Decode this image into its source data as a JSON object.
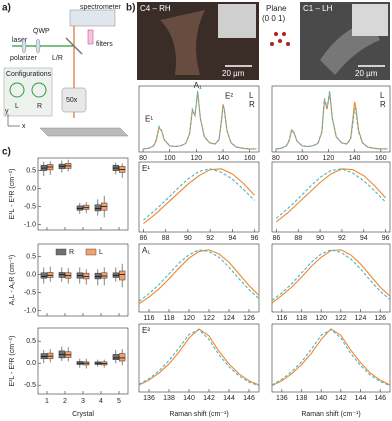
{
  "figure": {
    "a": {
      "label": "a)",
      "spectrometer": "spectrometer",
      "laser": "laser",
      "qwp": "QWP",
      "polarizer": "polarizer",
      "lr": "L/R",
      "filters": "filters",
      "objective": "50x",
      "configurations": "Configurations",
      "config_l": "L",
      "config_r": "R",
      "axis_x": "x",
      "axis_y": "y"
    },
    "b": {
      "label": "b)",
      "left_image": "C4 – RH",
      "left_scale": "20 µm",
      "plane": "Plane",
      "plane_index": "(0 0 1)",
      "right_image": "C1 – LH",
      "right_scale": "20 µm"
    },
    "c": {
      "label": "c)"
    }
  },
  "chart_data": [
    {
      "type": "line",
      "xlim": [
        77,
        167
      ],
      "xticks": [
        80,
        100,
        120,
        140,
        160
      ],
      "ylim": [
        0,
        1.08
      ],
      "legend": true,
      "annotations": [
        "E¹",
        "A₁",
        "E²"
      ],
      "x": [
        80,
        84,
        88,
        90,
        92,
        94,
        96,
        100,
        104,
        108,
        112,
        115,
        117,
        119,
        121,
        123,
        126,
        130,
        134,
        137,
        139,
        140,
        141,
        143,
        146,
        150,
        155,
        160,
        165
      ],
      "series": [
        {
          "name": "L",
          "color": "#f0862a",
          "dash": false,
          "values": [
            0.05,
            0.06,
            0.1,
            0.19,
            0.4,
            0.34,
            0.2,
            0.1,
            0.09,
            0.1,
            0.14,
            0.3,
            0.68,
            0.6,
            0.98,
            0.55,
            0.25,
            0.15,
            0.13,
            0.2,
            0.55,
            0.78,
            0.7,
            0.35,
            0.15,
            0.08,
            0.06,
            0.05,
            0.05
          ]
        },
        {
          "name": "R",
          "color": "#45b6c6",
          "dash": true,
          "values": [
            0.05,
            0.06,
            0.1,
            0.21,
            0.42,
            0.35,
            0.2,
            0.1,
            0.09,
            0.1,
            0.14,
            0.31,
            0.7,
            0.6,
            1.0,
            0.56,
            0.25,
            0.15,
            0.13,
            0.2,
            0.52,
            0.74,
            0.68,
            0.34,
            0.15,
            0.08,
            0.06,
            0.05,
            0.05
          ]
        }
      ]
    },
    {
      "type": "line",
      "xlim": [
        77,
        167
      ],
      "xticks": [
        80,
        100,
        120,
        140,
        160
      ],
      "ylim": [
        0,
        1.08
      ],
      "legend": true,
      "x": [
        80,
        84,
        88,
        90,
        92,
        94,
        96,
        100,
        104,
        108,
        112,
        115,
        117,
        119,
        121,
        123,
        126,
        130,
        134,
        137,
        139,
        140,
        141,
        143,
        146,
        150,
        155,
        160,
        165
      ],
      "series": [
        {
          "name": "L",
          "color": "#f0862a",
          "dash": false,
          "values": [
            0.05,
            0.06,
            0.1,
            0.18,
            0.36,
            0.3,
            0.18,
            0.1,
            0.09,
            0.1,
            0.14,
            0.32,
            0.85,
            0.7,
            0.97,
            0.55,
            0.25,
            0.15,
            0.13,
            0.22,
            0.6,
            0.82,
            0.72,
            0.36,
            0.15,
            0.08,
            0.06,
            0.05,
            0.05
          ]
        },
        {
          "name": "R",
          "color": "#45b6c6",
          "dash": true,
          "values": [
            0.05,
            0.06,
            0.1,
            0.19,
            0.37,
            0.31,
            0.18,
            0.1,
            0.09,
            0.1,
            0.14,
            0.33,
            0.88,
            0.72,
            1.0,
            0.56,
            0.25,
            0.15,
            0.13,
            0.21,
            0.52,
            0.72,
            0.66,
            0.33,
            0.15,
            0.08,
            0.06,
            0.05,
            0.05
          ]
        }
      ]
    },
    {
      "type": "line",
      "label": "E¹",
      "xlim": [
        85.6,
        96.4
      ],
      "xticks": [
        86,
        88,
        90,
        92,
        94,
        96
      ],
      "ylim": [
        0.2,
        1.02
      ],
      "x": [
        86,
        87,
        88,
        89,
        90,
        91,
        92,
        93,
        94,
        95,
        96
      ],
      "series": [
        {
          "color": "#f0862a",
          "dash": false,
          "values": [
            0.3,
            0.4,
            0.52,
            0.64,
            0.76,
            0.86,
            0.93,
            0.94,
            0.88,
            0.77,
            0.63
          ]
        },
        {
          "color": "#45b6c6",
          "dash": true,
          "values": [
            0.34,
            0.45,
            0.57,
            0.7,
            0.82,
            0.91,
            0.94,
            0.9,
            0.82,
            0.7,
            0.57
          ]
        }
      ]
    },
    {
      "type": "line",
      "xlim": [
        85.6,
        96.4
      ],
      "xticks": [
        86,
        88,
        90,
        92,
        94,
        96
      ],
      "ylim": [
        0.2,
        1.02
      ],
      "x": [
        86,
        87,
        88,
        89,
        90,
        91,
        92,
        93,
        94,
        95,
        96
      ],
      "series": [
        {
          "color": "#f0862a",
          "dash": false,
          "values": [
            0.32,
            0.42,
            0.54,
            0.66,
            0.78,
            0.88,
            0.94,
            0.93,
            0.86,
            0.74,
            0.6
          ]
        },
        {
          "color": "#45b6c6",
          "dash": true,
          "values": [
            0.36,
            0.47,
            0.59,
            0.72,
            0.84,
            0.92,
            0.94,
            0.89,
            0.8,
            0.68,
            0.55
          ]
        }
      ]
    },
    {
      "type": "line",
      "label": "A₁",
      "xlim": [
        115,
        127
      ],
      "xticks": [
        116,
        118,
        120,
        122,
        124,
        126
      ],
      "ylim": [
        0.2,
        1.02
      ],
      "x": [
        115,
        116,
        117,
        118,
        119,
        120,
        121,
        122,
        123,
        124,
        125,
        126,
        127
      ],
      "series": [
        {
          "color": "#f0862a",
          "dash": false,
          "values": [
            0.3,
            0.38,
            0.48,
            0.6,
            0.73,
            0.85,
            0.93,
            0.95,
            0.9,
            0.8,
            0.66,
            0.52,
            0.4
          ]
        },
        {
          "color": "#45b6c6",
          "dash": true,
          "values": [
            0.33,
            0.42,
            0.53,
            0.66,
            0.79,
            0.89,
            0.95,
            0.93,
            0.86,
            0.74,
            0.6,
            0.47,
            0.36
          ]
        }
      ]
    },
    {
      "type": "line",
      "xlim": [
        115,
        127
      ],
      "xticks": [
        116,
        118,
        120,
        122,
        124,
        126
      ],
      "ylim": [
        0.2,
        1.02
      ],
      "x": [
        115,
        116,
        117,
        118,
        119,
        120,
        121,
        122,
        123,
        124,
        125,
        126,
        127
      ],
      "series": [
        {
          "color": "#f0862a",
          "dash": false,
          "values": [
            0.31,
            0.4,
            0.5,
            0.62,
            0.75,
            0.86,
            0.94,
            0.95,
            0.89,
            0.78,
            0.64,
            0.5,
            0.39
          ]
        },
        {
          "color": "#45b6c6",
          "dash": true,
          "values": [
            0.34,
            0.43,
            0.54,
            0.67,
            0.8,
            0.9,
            0.95,
            0.92,
            0.84,
            0.72,
            0.58,
            0.45,
            0.35
          ]
        }
      ]
    },
    {
      "type": "line",
      "label": "E²",
      "xlim": [
        135,
        147
      ],
      "xticks": [
        136,
        138,
        140,
        142,
        144,
        146
      ],
      "ylim": [
        0.05,
        1.02
      ],
      "x_label": "Raman shift (cm⁻¹)",
      "x": [
        135,
        136,
        137,
        138,
        139,
        140,
        141,
        142,
        143,
        144,
        145,
        146,
        147
      ],
      "series": [
        {
          "color": "#f0862a",
          "dash": false,
          "values": [
            0.15,
            0.22,
            0.32,
            0.45,
            0.62,
            0.82,
            0.95,
            0.85,
            0.63,
            0.45,
            0.31,
            0.21,
            0.15
          ]
        },
        {
          "color": "#45b6c6",
          "dash": true,
          "values": [
            0.16,
            0.24,
            0.35,
            0.5,
            0.68,
            0.87,
            0.94,
            0.8,
            0.58,
            0.41,
            0.28,
            0.19,
            0.14
          ]
        }
      ]
    },
    {
      "type": "line",
      "xlim": [
        135,
        147
      ],
      "xticks": [
        136,
        138,
        140,
        142,
        144,
        146
      ],
      "ylim": [
        0.05,
        1.02
      ],
      "x_label": "Raman shift (cm⁻¹)",
      "x": [
        135,
        136,
        137,
        138,
        139,
        140,
        141,
        142,
        143,
        144,
        145,
        146,
        147
      ],
      "series": [
        {
          "color": "#f0862a",
          "dash": false,
          "values": [
            0.14,
            0.21,
            0.31,
            0.44,
            0.6,
            0.8,
            0.95,
            0.86,
            0.65,
            0.47,
            0.32,
            0.22,
            0.15
          ]
        },
        {
          "color": "#45b6c6",
          "dash": true,
          "values": [
            0.15,
            0.23,
            0.34,
            0.48,
            0.66,
            0.86,
            0.94,
            0.82,
            0.6,
            0.43,
            0.29,
            0.2,
            0.14
          ]
        }
      ]
    },
    {
      "type": "box",
      "y_label": "E¹L - E¹R (cm⁻¹)",
      "ylim": [
        -1.15,
        0.85
      ],
      "yticks": [
        0.5,
        {
          "value": 0,
          "label": "0.0"
        },
        -0.5,
        {
          "value": -1,
          "label": "-1.0"
        }
      ],
      "series": [
        {
          "color": "#707070",
          "boxes": [
            {
              "min": 0.35,
              "q1": 0.5,
              "median": 0.57,
              "q3": 0.65,
              "max": 0.75
            },
            {
              "min": 0.45,
              "q1": 0.55,
              "median": 0.62,
              "q3": 0.68,
              "max": 0.78
            },
            {
              "min": -0.7,
              "q1": -0.6,
              "median": -0.55,
              "q3": -0.48,
              "max": -0.4
            },
            {
              "min": -0.75,
              "q1": -0.62,
              "median": -0.55,
              "q3": -0.45,
              "max": -0.3
            },
            {
              "min": 0.4,
              "q1": 0.5,
              "median": 0.57,
              "q3": 0.65,
              "max": 0.72
            }
          ]
        },
        {
          "color": "#f3a06a",
          "boxes": [
            {
              "min": 0.38,
              "q1": 0.52,
              "median": 0.6,
              "q3": 0.67,
              "max": 0.76
            },
            {
              "min": 0.48,
              "q1": 0.56,
              "median": 0.63,
              "q3": 0.7,
              "max": 0.8
            },
            {
              "min": -0.68,
              "q1": -0.58,
              "median": -0.53,
              "q3": -0.46,
              "max": -0.38
            },
            {
              "min": -0.8,
              "q1": -0.6,
              "median": -0.5,
              "q3": -0.4,
              "max": -0.2
            },
            {
              "min": 0.3,
              "q1": 0.45,
              "median": 0.53,
              "q3": 0.62,
              "max": 0.7
            }
          ]
        }
      ]
    },
    {
      "type": "box",
      "y_label": "A₁L - A₁R (cm⁻¹)",
      "legend": true,
      "ylim": [
        -1.15,
        0.85
      ],
      "yticks": [
        0.5,
        {
          "value": 0,
          "label": "0.0"
        },
        -0.5,
        {
          "value": -1,
          "label": "-1.0"
        }
      ],
      "series": [
        {
          "name": "R",
          "color": "#707070",
          "boxes": [
            {
              "min": -0.25,
              "q1": -0.1,
              "median": -0.05,
              "q3": 0.05,
              "max": 0.2
            },
            {
              "min": -0.2,
              "q1": -0.08,
              "median": 0,
              "q3": 0.06,
              "max": 0.2
            },
            {
              "min": -0.25,
              "q1": -0.1,
              "median": -0.03,
              "q3": 0.05,
              "max": 0.2
            },
            {
              "min": -0.3,
              "q1": -0.12,
              "median": -0.05,
              "q3": 0.04,
              "max": 0.15
            },
            {
              "min": -0.2,
              "q1": -0.08,
              "median": -0.02,
              "q3": 0.05,
              "max": 0.2
            }
          ]
        },
        {
          "name": "L",
          "color": "#f3a06a",
          "boxes": [
            {
              "min": -0.2,
              "q1": -0.08,
              "median": -0.02,
              "q3": 0.06,
              "max": 0.22
            },
            {
              "min": -0.25,
              "q1": -0.1,
              "median": -0.03,
              "q3": 0.05,
              "max": 0.18
            },
            {
              "min": -0.28,
              "q1": -0.12,
              "median": -0.05,
              "q3": 0.04,
              "max": 0.15
            },
            {
              "min": -0.3,
              "q1": -0.1,
              "median": -0.04,
              "q3": 0.05,
              "max": 0.2
            },
            {
              "min": -0.35,
              "q1": -0.15,
              "median": 0,
              "q3": 0.1,
              "max": 0.3
            }
          ]
        }
      ]
    },
    {
      "type": "box",
      "y_label": "E²L - E²R (cm⁻¹)",
      "x_label": "Crystal",
      "categories": [
        "1",
        "2",
        "3",
        "4",
        "5"
      ],
      "ylim": [
        -0.7,
        0.8
      ],
      "yticks": [
        0.5,
        {
          "value": 0,
          "label": "0.0"
        },
        -0.5
      ],
      "series": [
        {
          "color": "#707070",
          "boxes": [
            {
              "min": 0,
              "q1": 0.1,
              "median": 0.15,
              "q3": 0.22,
              "max": 0.3
            },
            {
              "min": 0.05,
              "q1": 0.12,
              "median": 0.2,
              "q3": 0.28,
              "max": 0.38
            },
            {
              "min": -0.1,
              "q1": -0.03,
              "median": 0,
              "q3": 0.04,
              "max": 0.1
            },
            {
              "min": -0.08,
              "q1": -0.03,
              "median": 0,
              "q3": 0.03,
              "max": 0.08
            },
            {
              "min": 0,
              "q1": 0.08,
              "median": 0.12,
              "q3": 0.2,
              "max": 0.3
            }
          ]
        },
        {
          "color": "#f3a06a",
          "boxes": [
            {
              "min": 0.02,
              "q1": 0.1,
              "median": 0.16,
              "q3": 0.23,
              "max": 0.32
            },
            {
              "min": 0.04,
              "q1": 0.13,
              "median": 0.19,
              "q3": 0.26,
              "max": 0.36
            },
            {
              "min": -0.12,
              "q1": -0.04,
              "median": 0,
              "q3": 0.03,
              "max": 0.1
            },
            {
              "min": -0.1,
              "q1": -0.04,
              "median": -0.01,
              "q3": 0.03,
              "max": 0.08
            },
            {
              "min": -0.05,
              "q1": 0.05,
              "median": 0.12,
              "q3": 0.22,
              "max": 0.32
            }
          ]
        }
      ]
    }
  ]
}
